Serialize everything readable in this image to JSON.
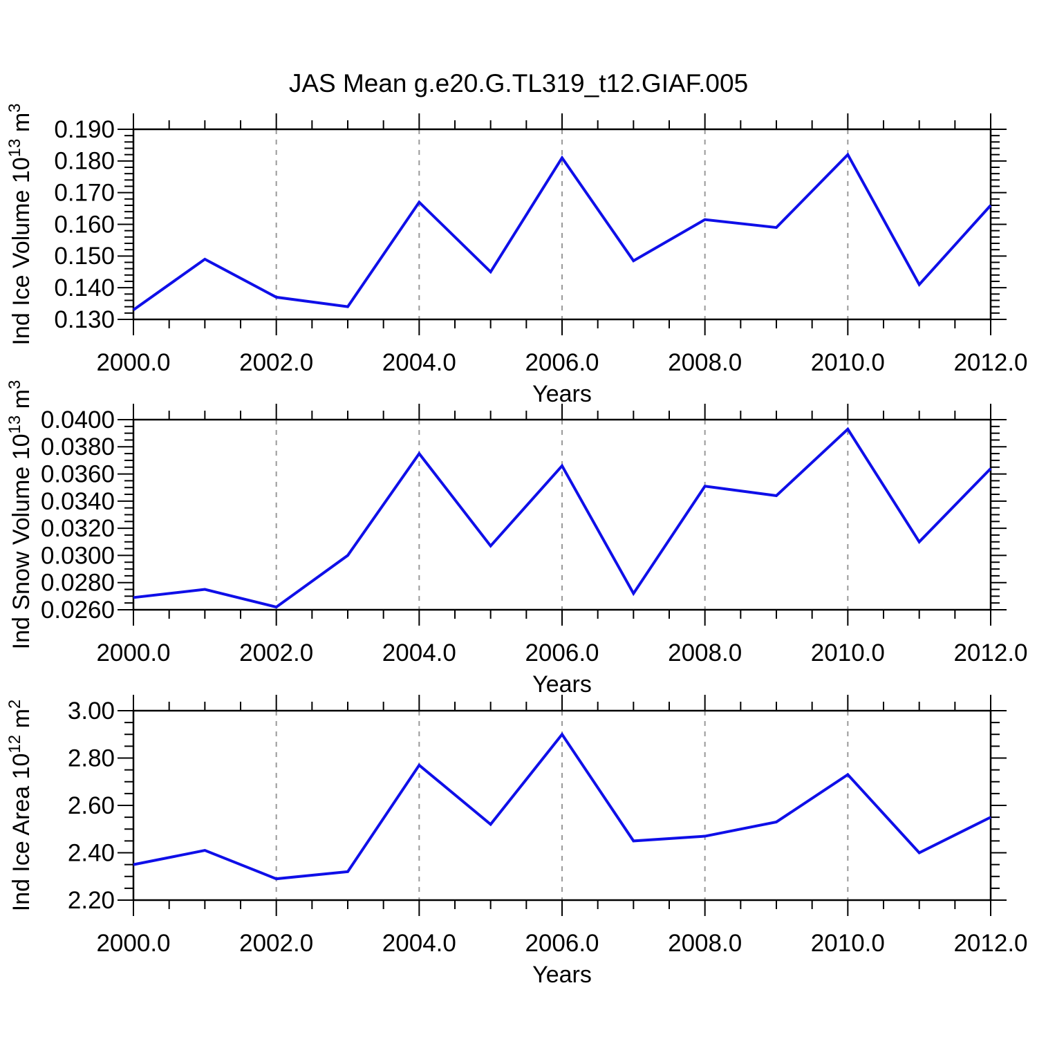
{
  "title": "JAS Mean g.e20.G.TL319_t12.GIAF.005",
  "colors": {
    "line": "#0f0fe8",
    "grid": "#999999",
    "axis": "#000000",
    "background": "#ffffff"
  },
  "xlabel": "Years",
  "chart_data": [
    {
      "type": "line",
      "id": "ice-volume",
      "ylabel": "Ind Ice Volume 10^13 m^3",
      "ylabel_parts": [
        [
          "Ind Ice Volume 10",
          false
        ],
        [
          "13",
          true
        ],
        [
          " m",
          false
        ],
        [
          "3",
          true
        ]
      ],
      "xlabel": "Years",
      "x": [
        2000,
        2001,
        2002,
        2003,
        2004,
        2005,
        2006,
        2007,
        2008,
        2009,
        2010,
        2011,
        2012
      ],
      "values": [
        0.133,
        0.149,
        0.137,
        0.134,
        0.167,
        0.145,
        0.181,
        0.1485,
        0.1615,
        0.159,
        0.182,
        0.141,
        0.166
      ],
      "xlim": [
        2000,
        2012
      ],
      "ylim": [
        0.13,
        0.19
      ],
      "xticks": [
        2000,
        2002,
        2004,
        2006,
        2008,
        2010,
        2012
      ],
      "xtick_labels": [
        "2000.0",
        "2002.0",
        "2004.0",
        "2006.0",
        "2008.0",
        "2010.0",
        "2012.0"
      ],
      "yticks": [
        0.13,
        0.14,
        0.15,
        0.16,
        0.17,
        0.18,
        0.19
      ],
      "ytick_labels": [
        "0.130",
        "0.140",
        "0.150",
        "0.160",
        "0.170",
        "0.180",
        "0.190"
      ],
      "xminor_step": 0.5,
      "yminor_step": 0.002,
      "grid_x": [
        2002,
        2004,
        2006,
        2008,
        2010
      ],
      "grid": "vertical-dashed",
      "legend": "none"
    },
    {
      "type": "line",
      "id": "snow-volume",
      "ylabel": "Ind Snow Volume 10^13 m^3",
      "ylabel_parts": [
        [
          "Ind Snow Volume 10",
          false
        ],
        [
          "13",
          true
        ],
        [
          " m",
          false
        ],
        [
          "3",
          true
        ]
      ],
      "xlabel": "Years",
      "x": [
        2000,
        2001,
        2002,
        2003,
        2004,
        2005,
        2006,
        2007,
        2008,
        2009,
        2010,
        2011,
        2012
      ],
      "values": [
        0.0269,
        0.0275,
        0.0262,
        0.03,
        0.0375,
        0.0307,
        0.0366,
        0.0272,
        0.0351,
        0.0344,
        0.0393,
        0.031,
        0.0364
      ],
      "xlim": [
        2000,
        2012
      ],
      "ylim": [
        0.026,
        0.04
      ],
      "xticks": [
        2000,
        2002,
        2004,
        2006,
        2008,
        2010,
        2012
      ],
      "xtick_labels": [
        "2000.0",
        "2002.0",
        "2004.0",
        "2006.0",
        "2008.0",
        "2010.0",
        "2012.0"
      ],
      "yticks": [
        0.026,
        0.028,
        0.03,
        0.032,
        0.034,
        0.036,
        0.038,
        0.04
      ],
      "ytick_labels": [
        "0.0260",
        "0.0280",
        "0.0300",
        "0.0320",
        "0.0340",
        "0.0360",
        "0.0380",
        "0.0400"
      ],
      "xminor_step": 0.5,
      "yminor_step": 0.0005,
      "grid_x": [
        2002,
        2004,
        2006,
        2008,
        2010
      ],
      "grid": "vertical-dashed",
      "legend": "none"
    },
    {
      "type": "line",
      "id": "ice-area",
      "ylabel": "Ind Ice Area 10^12 m^2",
      "ylabel_parts": [
        [
          "Ind Ice Area 10",
          false
        ],
        [
          "12",
          true
        ],
        [
          " m",
          false
        ],
        [
          "2",
          true
        ]
      ],
      "xlabel": "Years",
      "x": [
        2000,
        2001,
        2002,
        2003,
        2004,
        2005,
        2006,
        2007,
        2008,
        2009,
        2010,
        2011,
        2012
      ],
      "values": [
        2.35,
        2.41,
        2.29,
        2.32,
        2.77,
        2.52,
        2.9,
        2.45,
        2.47,
        2.53,
        2.73,
        2.4,
        2.55
      ],
      "xlim": [
        2000,
        2012
      ],
      "ylim": [
        2.2,
        3.0
      ],
      "xticks": [
        2000,
        2002,
        2004,
        2006,
        2008,
        2010,
        2012
      ],
      "xtick_labels": [
        "2000.0",
        "2002.0",
        "2004.0",
        "2006.0",
        "2008.0",
        "2010.0",
        "2012.0"
      ],
      "yticks": [
        2.2,
        2.4,
        2.6,
        2.8,
        3.0
      ],
      "ytick_labels": [
        "2.20",
        "2.40",
        "2.60",
        "2.80",
        "3.00"
      ],
      "xminor_step": 0.5,
      "yminor_step": 0.05,
      "grid_x": [
        2002,
        2004,
        2006,
        2008,
        2010
      ],
      "grid": "vertical-dashed",
      "legend": "none"
    }
  ]
}
